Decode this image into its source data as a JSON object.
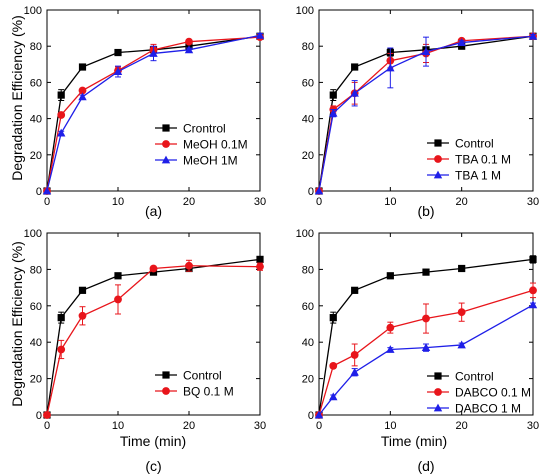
{
  "figure": {
    "ylabel": "Degradation Efficiency (%)",
    "xlabel": "Time (min)"
  },
  "colors": {
    "black": "#000000",
    "red": "#e8151b",
    "blue": "#1f1fe8"
  },
  "chart_data": [
    {
      "type": "line",
      "panel_label": "(a)",
      "xlim": [
        0,
        30
      ],
      "ylim": [
        0,
        100
      ],
      "xticks": [
        0,
        10,
        20,
        30
      ],
      "yticks": [
        0,
        20,
        40,
        60,
        80,
        100
      ],
      "show_xlabel": false,
      "show_ylabel": true,
      "legend_position": "bottom-right",
      "series": [
        {
          "name": "Crontrol",
          "marker": "square",
          "color": "#000000",
          "x": [
            0,
            2,
            5,
            10,
            15,
            20,
            30
          ],
          "y": [
            0,
            53,
            68.5,
            76.5,
            78,
            80,
            85.5
          ],
          "err": [
            0,
            3,
            1,
            1,
            1,
            1,
            1
          ]
        },
        {
          "name": "MeOH 0.1M",
          "marker": "circle",
          "color": "#e8151b",
          "x": [
            0,
            2,
            5,
            10,
            15,
            20,
            30
          ],
          "y": [
            0,
            42,
            55.5,
            66.5,
            78,
            82.5,
            85
          ],
          "err": [
            0,
            1,
            1,
            2,
            3,
            1,
            1
          ]
        },
        {
          "name": "MeOH 1M",
          "marker": "triangle",
          "color": "#1f1fe8",
          "x": [
            0,
            2,
            5,
            10,
            15,
            20,
            30
          ],
          "y": [
            0,
            32,
            52,
            66,
            76,
            78,
            86
          ],
          "err": [
            0,
            1,
            1,
            3,
            4,
            1,
            1
          ]
        }
      ]
    },
    {
      "type": "line",
      "panel_label": "(b)",
      "xlim": [
        0,
        30
      ],
      "ylim": [
        0,
        100
      ],
      "xticks": [
        0,
        10,
        20,
        30
      ],
      "yticks": [
        0,
        20,
        40,
        60,
        80,
        100
      ],
      "show_xlabel": false,
      "show_ylabel": false,
      "legend_position": "bottom-right",
      "series": [
        {
          "name": "Control",
          "marker": "square",
          "color": "#000000",
          "x": [
            0,
            2,
            5,
            10,
            15,
            20,
            30
          ],
          "y": [
            0,
            53,
            68.5,
            76.5,
            78,
            80,
            85.5
          ],
          "err": [
            0,
            3,
            1,
            2,
            1,
            1,
            1
          ]
        },
        {
          "name": "TBA 0.1 M",
          "marker": "circle",
          "color": "#e8151b",
          "x": [
            0,
            2,
            5,
            10,
            15,
            20,
            30
          ],
          "y": [
            0,
            45,
            54,
            72,
            76,
            83,
            85.5
          ],
          "err": [
            0,
            2,
            6,
            4,
            5,
            1,
            1
          ]
        },
        {
          "name": "TBA 1 M",
          "marker": "triangle",
          "color": "#1f1fe8",
          "x": [
            0,
            2,
            5,
            10,
            15,
            20,
            30
          ],
          "y": [
            0,
            43,
            54,
            68,
            77,
            82,
            85.5
          ],
          "err": [
            0,
            2,
            7,
            11,
            8,
            1,
            1
          ]
        }
      ]
    },
    {
      "type": "line",
      "panel_label": "(c)",
      "xlim": [
        0,
        30
      ],
      "ylim": [
        0,
        100
      ],
      "xticks": [
        0,
        10,
        20,
        30
      ],
      "yticks": [
        0,
        20,
        40,
        60,
        80,
        100
      ],
      "show_xlabel": true,
      "show_ylabel": true,
      "legend_position": "bottom-right",
      "series": [
        {
          "name": "Control",
          "marker": "square",
          "color": "#000000",
          "x": [
            0,
            2,
            5,
            10,
            15,
            20,
            30
          ],
          "y": [
            0,
            53.5,
            68.5,
            76.5,
            78.5,
            80.5,
            85.5
          ],
          "err": [
            0,
            3,
            1,
            1,
            1,
            1,
            1
          ]
        },
        {
          "name": "BQ 0.1 M",
          "marker": "circle",
          "color": "#e8151b",
          "x": [
            0,
            2,
            5,
            10,
            15,
            20,
            30
          ],
          "y": [
            0,
            36,
            54.5,
            63.5,
            80.5,
            82,
            81.5
          ],
          "err": [
            0,
            5,
            5,
            8,
            1,
            3,
            2
          ]
        }
      ]
    },
    {
      "type": "line",
      "panel_label": "(d)",
      "xlim": [
        0,
        30
      ],
      "ylim": [
        0,
        100
      ],
      "xticks": [
        0,
        10,
        20,
        30
      ],
      "yticks": [
        0,
        20,
        40,
        60,
        80,
        100
      ],
      "show_xlabel": true,
      "show_ylabel": false,
      "legend_position": "bottom-right",
      "series": [
        {
          "name": "Control",
          "marker": "square",
          "color": "#000000",
          "x": [
            0,
            2,
            5,
            10,
            15,
            20,
            30
          ],
          "y": [
            0,
            53.5,
            68.5,
            76.5,
            78.5,
            80.5,
            85.5
          ],
          "err": [
            0,
            3,
            1,
            1,
            1,
            1,
            2
          ]
        },
        {
          "name": "DABCO 0.1 M",
          "marker": "circle",
          "color": "#e8151b",
          "x": [
            0,
            2,
            5,
            10,
            15,
            20,
            30
          ],
          "y": [
            0,
            27,
            33,
            48,
            53,
            56.5,
            68.5
          ],
          "err": [
            0,
            1,
            6,
            3,
            8,
            5,
            4
          ]
        },
        {
          "name": "DABCO 1 M",
          "marker": "triangle",
          "color": "#1f1fe8",
          "x": [
            0,
            2,
            5,
            10,
            15,
            20,
            30
          ],
          "y": [
            0,
            10,
            23.5,
            36,
            37,
            38.5,
            60.5
          ],
          "err": [
            0,
            1,
            2,
            1,
            2,
            1,
            1
          ]
        }
      ]
    }
  ]
}
